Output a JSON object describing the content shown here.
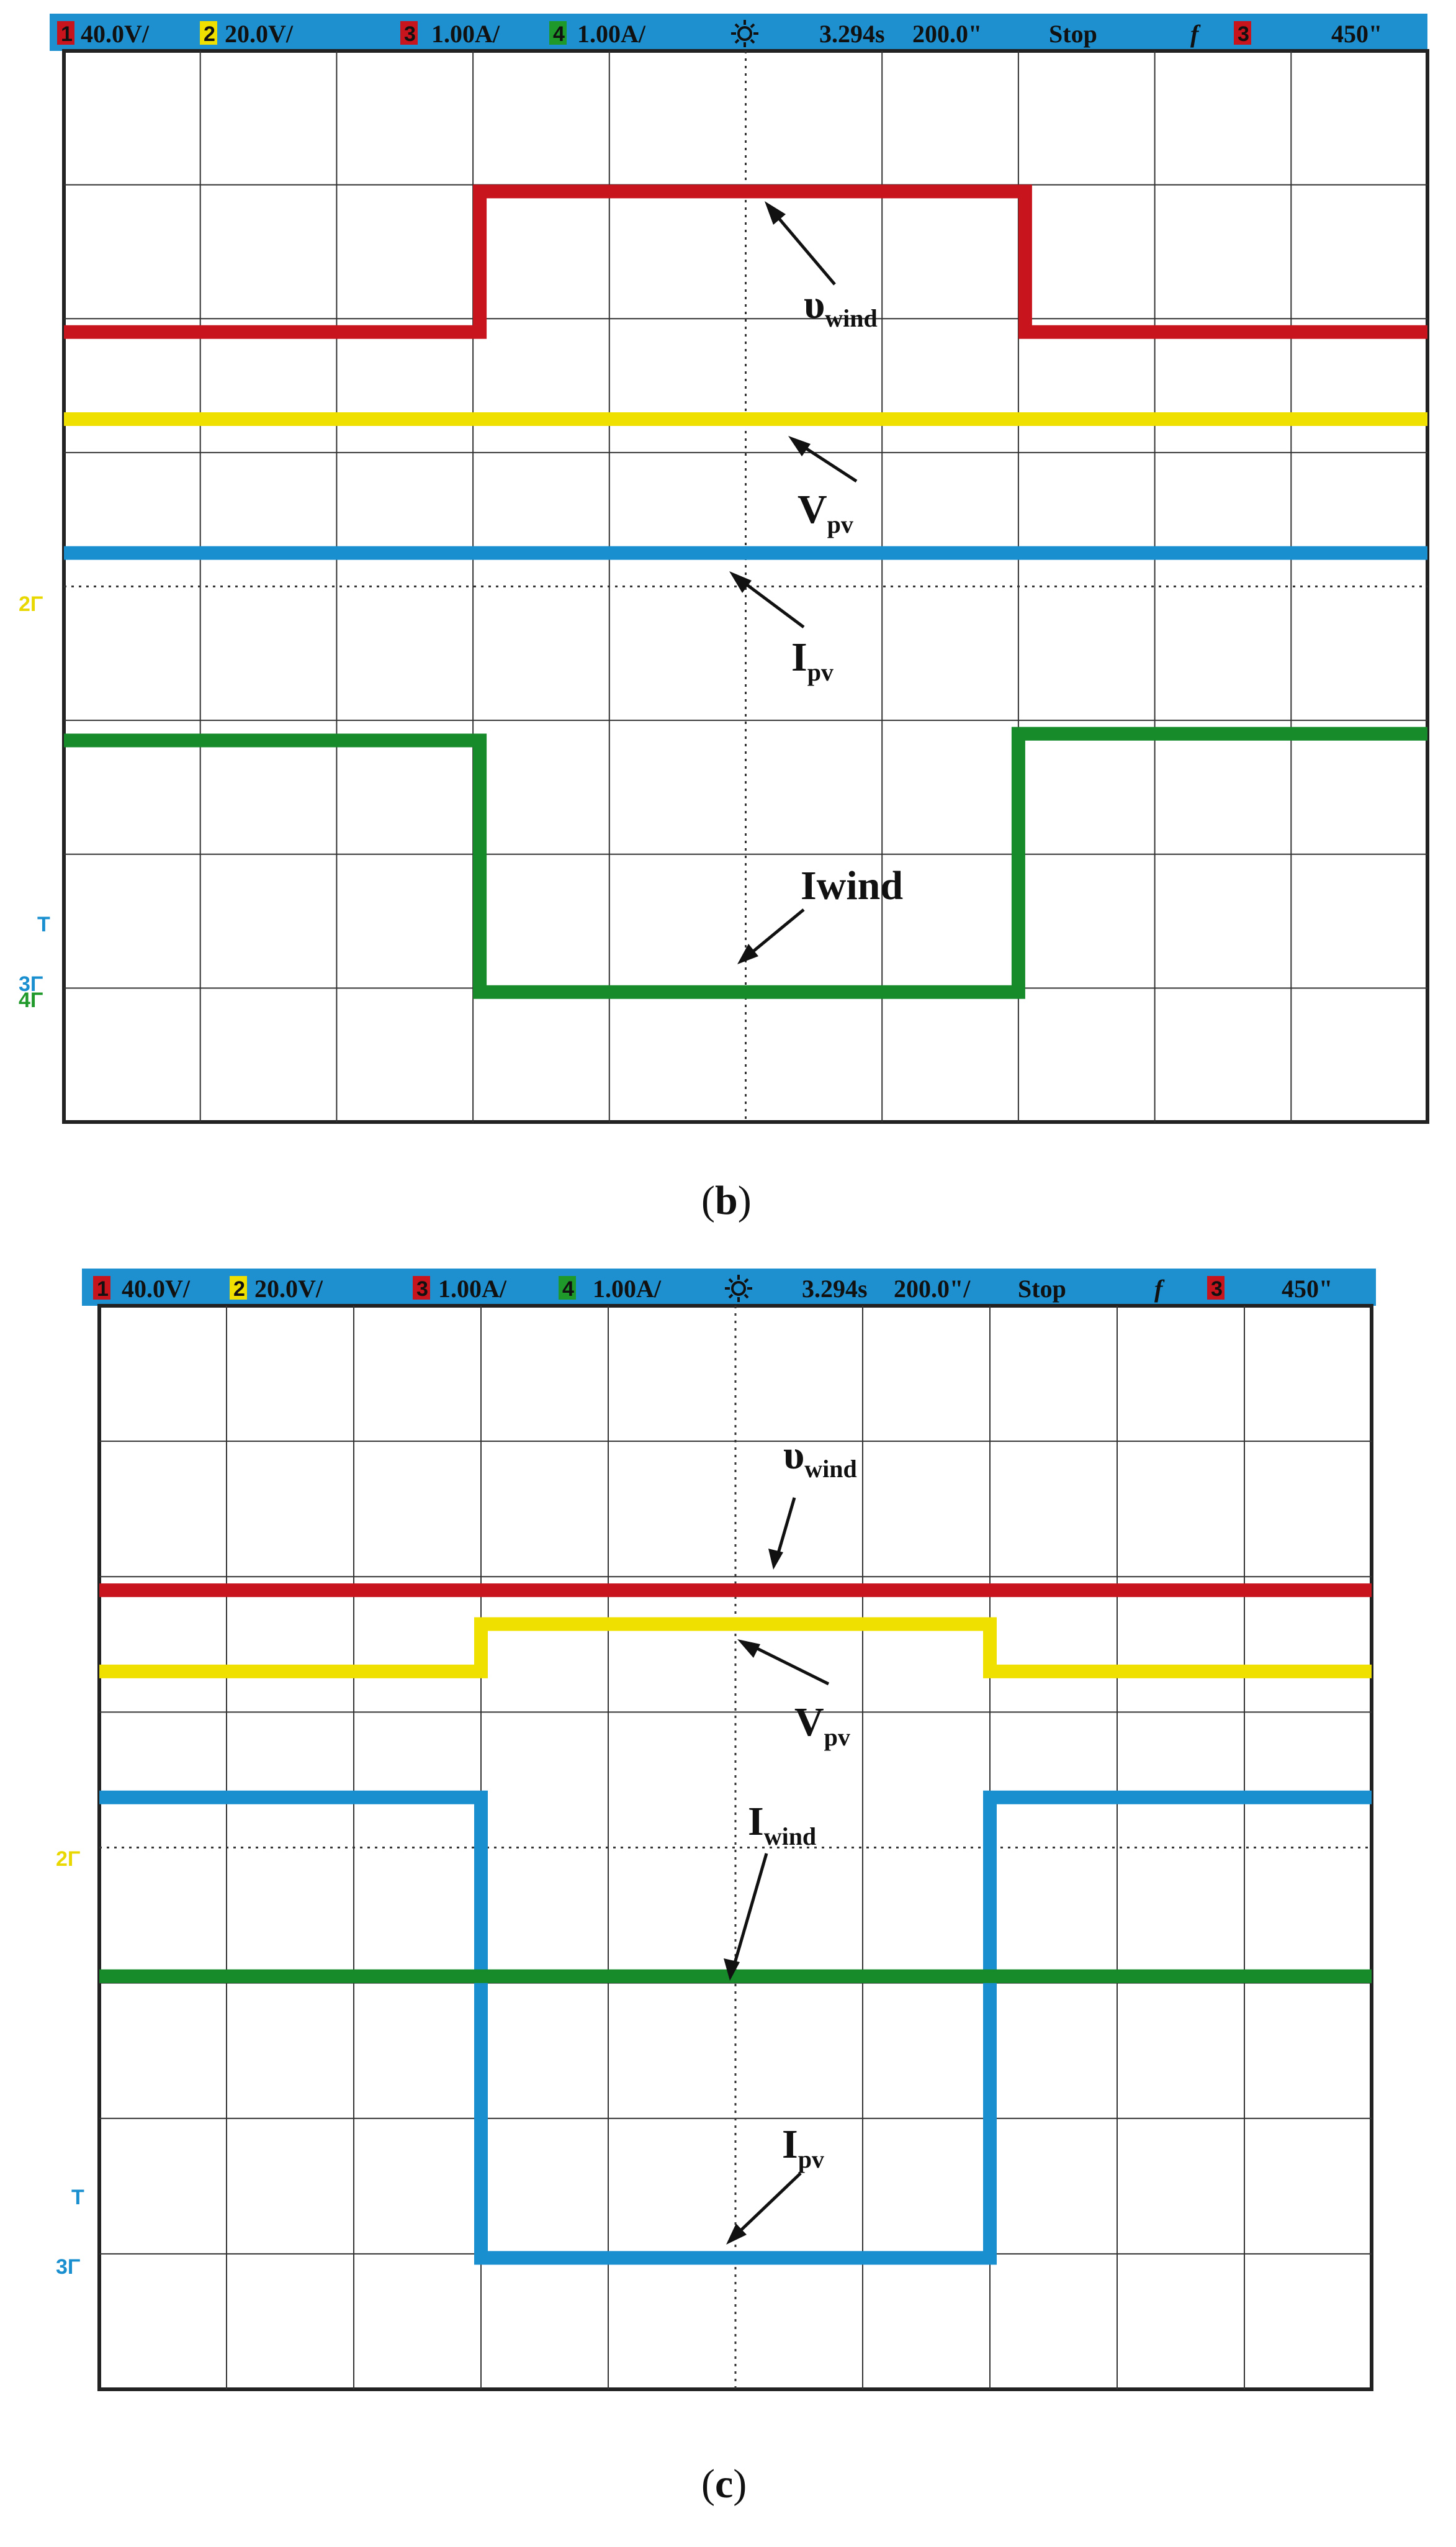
{
  "panels": [
    {
      "caption_letter": "b",
      "status": {
        "ch1": "40.0V/",
        "ch2": "20.0V/",
        "ch3": "1.00A/",
        "ch4": "1.00A/",
        "time": "3.294s",
        "timebase": "200.0\"",
        "state": "Stop",
        "f_symbol": "f",
        "trig_ch": "3",
        "trig_level": "450\""
      },
      "left_markers": [
        {
          "text": "2Γ",
          "color": "#e8d800"
        },
        {
          "text": "T",
          "color": "#1a8fd0"
        },
        {
          "text": "3Γ",
          "color": "#1a8fd0"
        },
        {
          "text": "4Γ",
          "color": "#1f9a2a"
        }
      ],
      "labels": {
        "vwind": {
          "main": "υ",
          "sub": "wind"
        },
        "vpv": {
          "main": "V",
          "sub": "pv"
        },
        "ipv": {
          "main": "I",
          "sub": "pv"
        },
        "iwind": {
          "main": "Iwind",
          "sub": ""
        }
      },
      "chart_data": {
        "type": "line",
        "x_divisions": 10,
        "y_divisions": 8,
        "x_range": [
          0,
          10
        ],
        "y_range": [
          0,
          8
        ],
        "series": [
          {
            "name": "υwind",
            "color": "#c8141c",
            "steps": [
              [
                0,
                5.9
              ],
              [
                3.05,
                5.9
              ],
              [
                3.05,
                6.95
              ],
              [
                7.05,
                6.95
              ],
              [
                7.05,
                5.9
              ],
              [
                10,
                5.9
              ]
            ]
          },
          {
            "name": "Vpv",
            "color": "#f0e000",
            "steps": [
              [
                0,
                5.25
              ],
              [
                10,
                5.25
              ]
            ]
          },
          {
            "name": "Ipv",
            "color": "#1a8fd0",
            "steps": [
              [
                0,
                4.25
              ],
              [
                10,
                4.25
              ]
            ]
          },
          {
            "name": "Iwind",
            "color": "#178a2a",
            "steps": [
              [
                0,
                2.85
              ],
              [
                3.05,
                2.85
              ],
              [
                3.05,
                0.97
              ],
              [
                7.0,
                0.97
              ],
              [
                7.0,
                2.9
              ],
              [
                10,
                2.9
              ]
            ]
          }
        ]
      }
    },
    {
      "caption_letter": "c",
      "status": {
        "ch1": "40.0V/",
        "ch2": "20.0V/",
        "ch3": "1.00A/",
        "ch4": "1.00A/",
        "time": "3.294s",
        "timebase": "200.0\"/",
        "state": "Stop",
        "f_symbol": "f",
        "trig_ch": "3",
        "trig_level": "450\""
      },
      "left_markers": [
        {
          "text": "2Γ",
          "color": "#e8d800"
        },
        {
          "text": "T",
          "color": "#1a8fd0"
        },
        {
          "text": "3Γ",
          "color": "#1a8fd0"
        }
      ],
      "labels": {
        "vwind": {
          "main": "υ",
          "sub": "wind"
        },
        "vpv": {
          "main": "V",
          "sub": "pv"
        },
        "iwind": {
          "main": "I",
          "sub": "wind"
        },
        "ipv": {
          "main": "I",
          "sub": "pv"
        }
      },
      "chart_data": {
        "type": "line",
        "x_divisions": 10,
        "y_divisions": 8,
        "x_range": [
          0,
          10
        ],
        "y_range": [
          0,
          8
        ],
        "series": [
          {
            "name": "υwind",
            "color": "#c8141c",
            "steps": [
              [
                0,
                5.9
              ],
              [
                10,
                5.9
              ]
            ]
          },
          {
            "name": "Vpv",
            "color": "#f0e000",
            "steps": [
              [
                0,
                5.3
              ],
              [
                3.0,
                5.3
              ],
              [
                3.0,
                5.65
              ],
              [
                7.0,
                5.65
              ],
              [
                7.0,
                5.3
              ],
              [
                10,
                5.3
              ]
            ]
          },
          {
            "name": "Ipv",
            "color": "#1a8fd0",
            "steps": [
              [
                0,
                4.37
              ],
              [
                3.0,
                4.37
              ],
              [
                3.0,
                0.97
              ],
              [
                7.0,
                0.97
              ],
              [
                7.0,
                4.37
              ],
              [
                10,
                4.37
              ]
            ]
          },
          {
            "name": "Iwind",
            "color": "#178a2a",
            "steps": [
              [
                0,
                3.05
              ],
              [
                10,
                3.05
              ]
            ]
          }
        ]
      }
    }
  ]
}
